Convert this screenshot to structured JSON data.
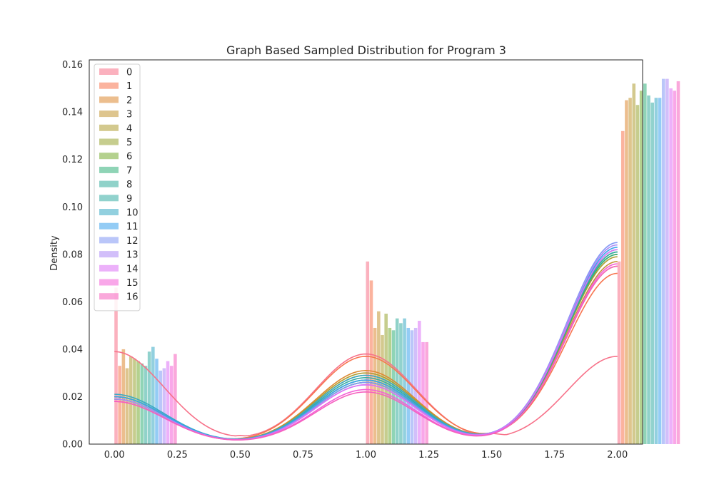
{
  "chart_data": {
    "type": "histogram-kde",
    "title": "Graph Based Sampled Distribution for Program 3",
    "xlabel": "",
    "ylabel": "Density",
    "xlim": [
      -0.1,
      2.1
    ],
    "ylim": [
      0,
      0.162
    ],
    "x_ticks": [
      "0.00",
      "0.25",
      "0.50",
      "0.75",
      "1.00",
      "1.25",
      "1.50",
      "1.75",
      "2.00"
    ],
    "y_ticks": [
      "0.00",
      "0.02",
      "0.04",
      "0.06",
      "0.08",
      "0.10",
      "0.12",
      "0.14",
      "0.16"
    ],
    "grid": false,
    "legend_position": "upper-left",
    "bin_groups": [
      0,
      1,
      2
    ],
    "series": [
      {
        "name": "0",
        "color": "#f77189",
        "bars": [
          0.066,
          0.077,
          0.077
        ],
        "kde": [
          0.039,
          0.038,
          0.037
        ]
      },
      {
        "name": "1",
        "color": "#f7754f",
        "bars": [
          0.033,
          0.069,
          0.132
        ],
        "kde": [
          0.018,
          0.037,
          0.072
        ]
      },
      {
        "name": "2",
        "color": "#dc8932",
        "bars": [
          0.04,
          0.049,
          0.145
        ],
        "kde": [
          0.02,
          0.031,
          0.075
        ]
      },
      {
        "name": "3",
        "color": "#c39532",
        "bars": [
          0.032,
          0.056,
          0.146
        ],
        "kde": [
          0.019,
          0.029,
          0.077
        ]
      },
      {
        "name": "4",
        "color": "#ae9d31",
        "bars": [
          0.037,
          0.046,
          0.152
        ],
        "kde": [
          0.02,
          0.03,
          0.079
        ]
      },
      {
        "name": "5",
        "color": "#97a431",
        "bars": [
          0.036,
          0.055,
          0.143
        ],
        "kde": [
          0.02,
          0.027,
          0.08
        ]
      },
      {
        "name": "6",
        "color": "#77ab31",
        "bars": [
          0.035,
          0.049,
          0.149
        ],
        "kde": [
          0.019,
          0.026,
          0.081
        ]
      },
      {
        "name": "7",
        "color": "#33b07a",
        "bars": [
          0.034,
          0.048,
          0.152
        ],
        "kde": [
          0.019,
          0.026,
          0.08
        ]
      },
      {
        "name": "8",
        "color": "#35ad9c",
        "bars": [
          0.033,
          0.053,
          0.147
        ],
        "kde": [
          0.019,
          0.027,
          0.081
        ]
      },
      {
        "name": "9",
        "color": "#36ada4",
        "bars": [
          0.039,
          0.051,
          0.144
        ],
        "kde": [
          0.02,
          0.028,
          0.081
        ]
      },
      {
        "name": "10",
        "color": "#38a9c5",
        "bars": [
          0.041,
          0.053,
          0.146
        ],
        "kde": [
          0.021,
          0.029,
          0.082
        ]
      },
      {
        "name": "11",
        "color": "#3ba3ec",
        "bars": [
          0.036,
          0.049,
          0.146
        ],
        "kde": [
          0.02,
          0.027,
          0.083
        ]
      },
      {
        "name": "12",
        "color": "#8197f4",
        "bars": [
          0.031,
          0.048,
          0.154
        ],
        "kde": [
          0.019,
          0.026,
          0.085
        ]
      },
      {
        "name": "13",
        "color": "#ad8bf5",
        "bars": [
          0.032,
          0.049,
          0.154
        ],
        "kde": [
          0.019,
          0.025,
          0.084
        ]
      },
      {
        "name": "14",
        "color": "#dc71f5",
        "bars": [
          0.035,
          0.052,
          0.15
        ],
        "kde": [
          0.018,
          0.025,
          0.082
        ]
      },
      {
        "name": "15",
        "color": "#f45fd7",
        "bars": [
          0.033,
          0.043,
          0.149
        ],
        "kde": [
          0.018,
          0.023,
          0.076
        ]
      },
      {
        "name": "16",
        "color": "#f561be",
        "bars": [
          0.038,
          0.043,
          0.153
        ],
        "kde": [
          0.018,
          0.022,
          0.075
        ]
      }
    ]
  }
}
